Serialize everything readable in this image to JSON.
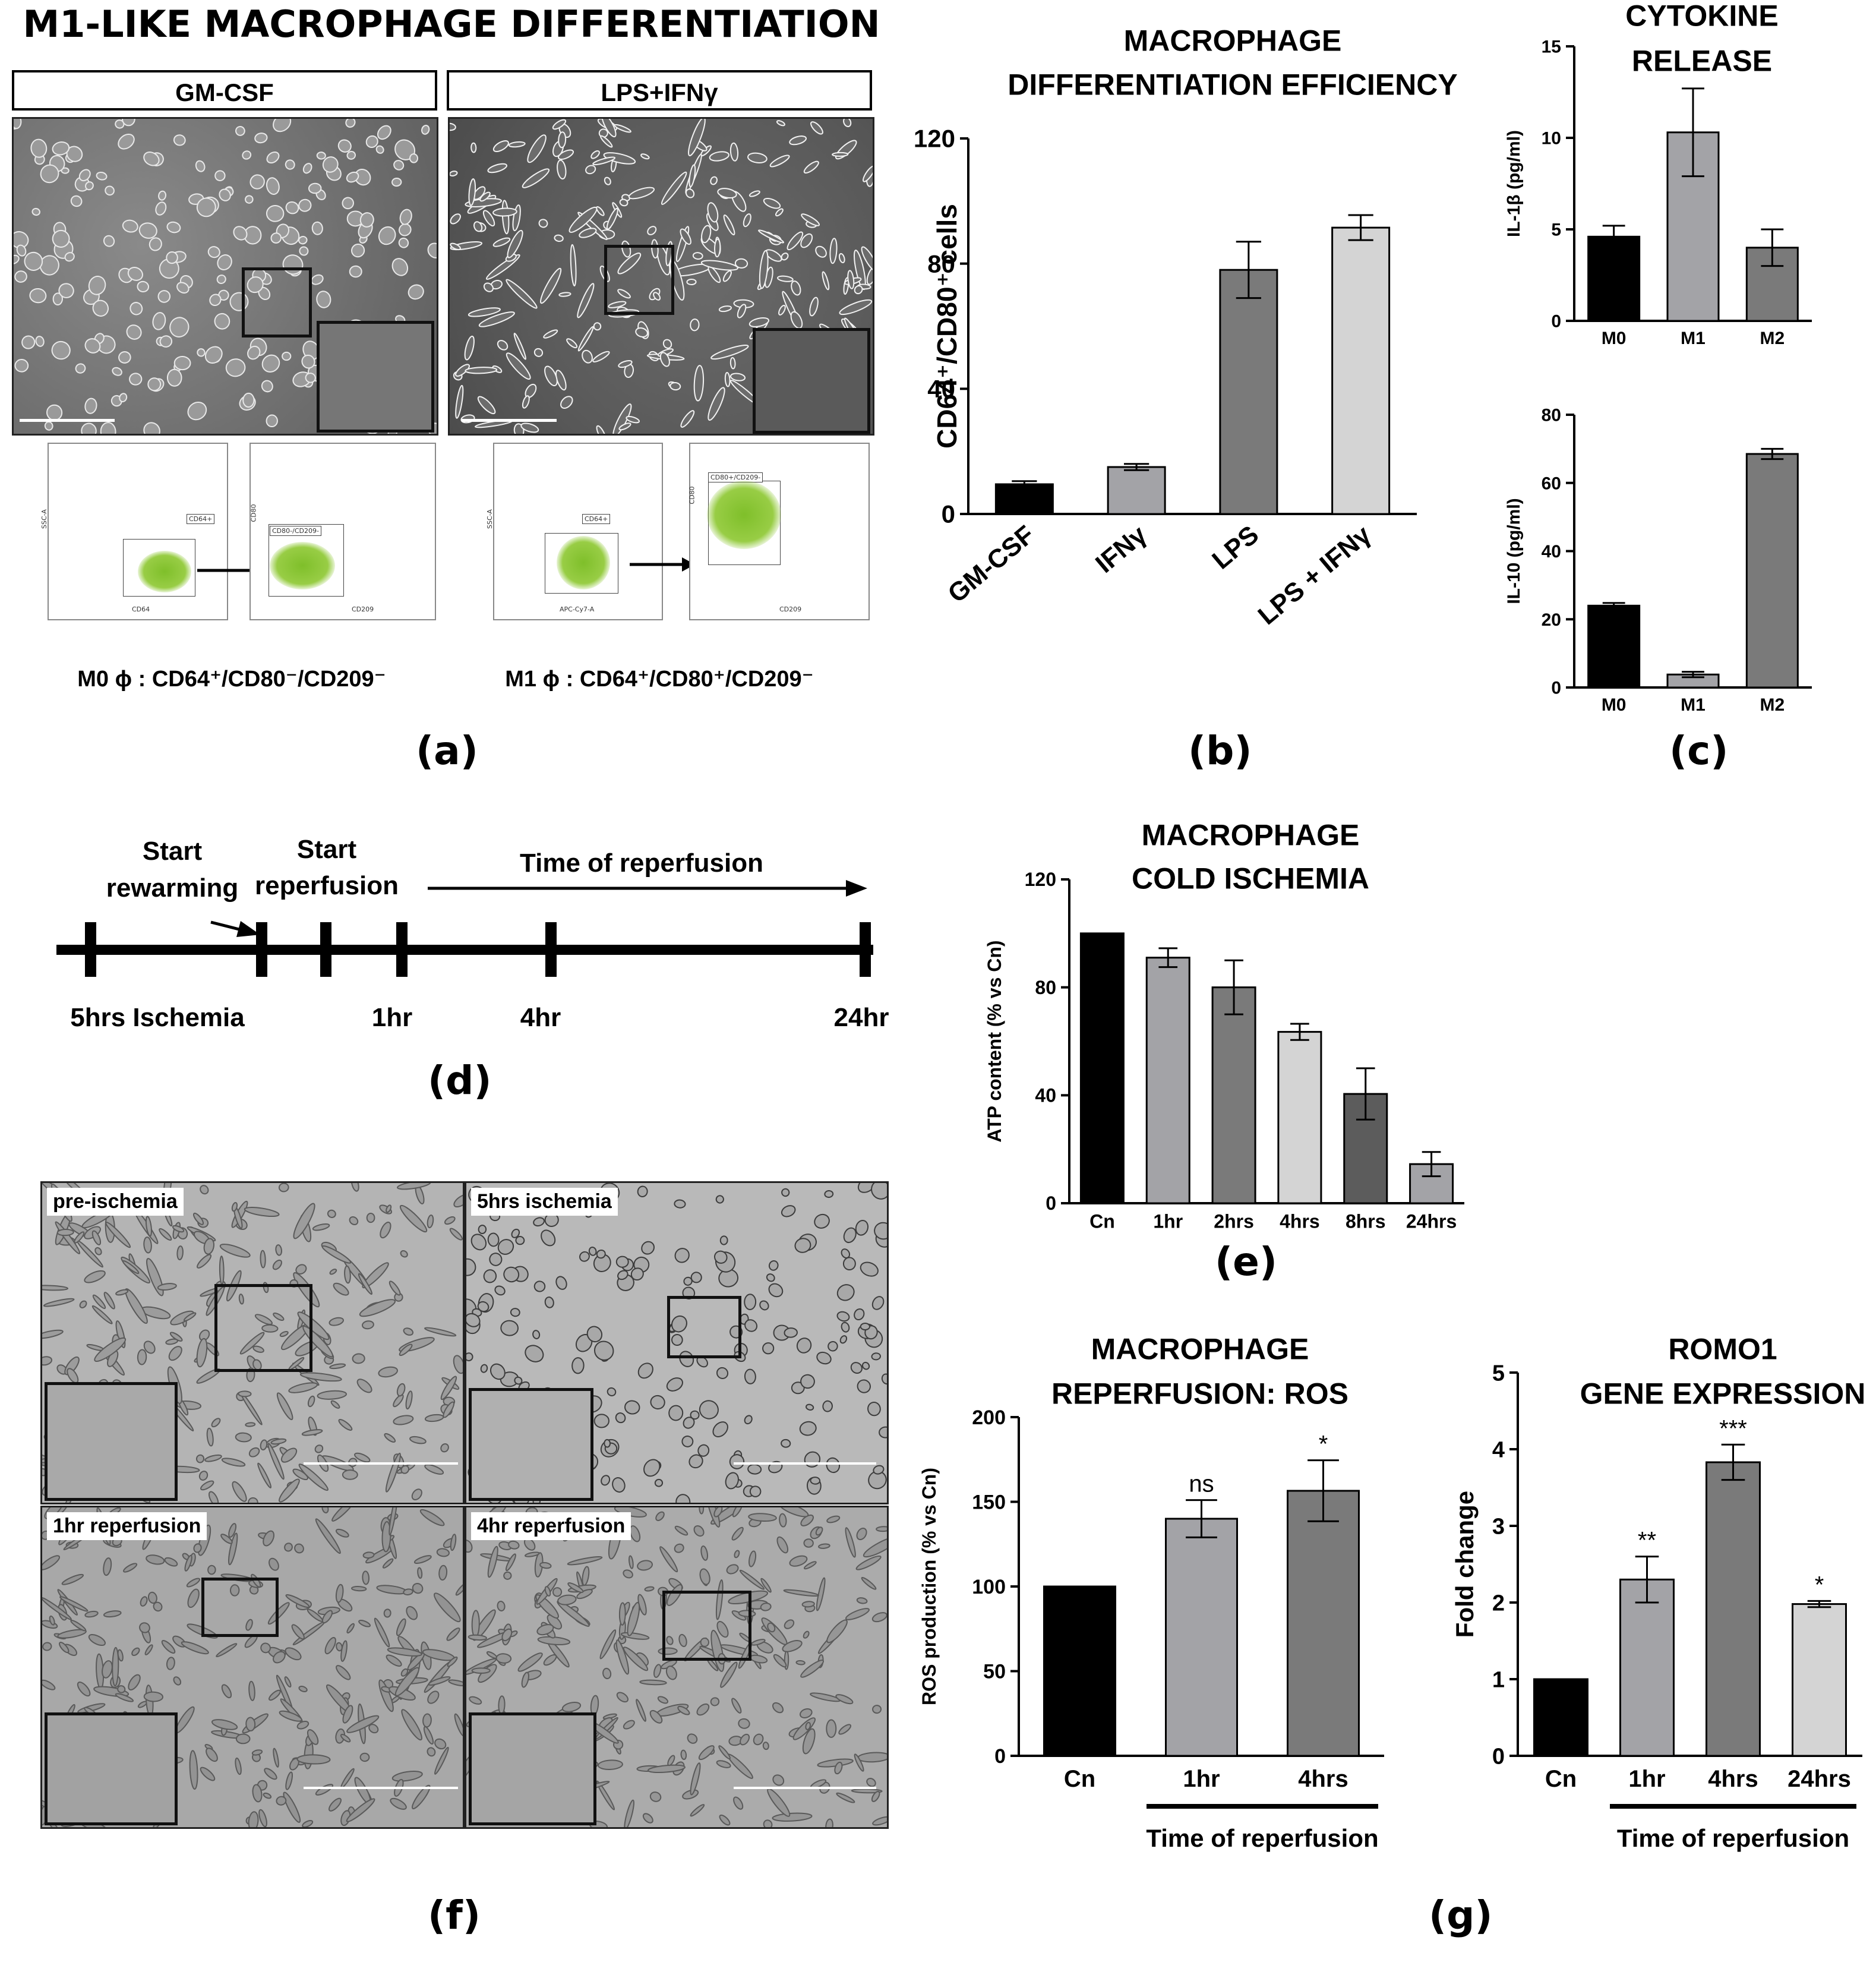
{
  "panel_a": {
    "title": "M1-LIKE MACROPHAGE DIFFERENTIATION",
    "col1": "GM-CSF",
    "col2": "LPS+IFNγ",
    "flow1": {
      "ssc": "SSC-A",
      "gate1": "CD64+",
      "x1": "CD64",
      "y2": "CD80",
      "gate2": "CD80-/CD209-",
      "x2": "CD209"
    },
    "flow2": {
      "ssc": "SSC-A",
      "gate1": "CD64+",
      "x1": "APC-Cy7-A",
      "y2": "CD80",
      "gate2": "CD80+/CD209-",
      "x2": "CD209"
    },
    "pheno1": "M0 ϕ : CD64⁺/CD80⁻/CD209⁻",
    "pheno2": "M1 ϕ : CD64⁺/CD80⁺/CD209⁻",
    "letter": "(a)"
  },
  "panel_d": {
    "start_rewarming": [
      "Start",
      "rewarming"
    ],
    "start_reperfusion": [
      "Start",
      "reperfusion"
    ],
    "time_of_reperfusion": "Time of reperfusion",
    "labels": [
      "5hrs Ischemia",
      "1hr",
      "4hr",
      "24hr"
    ],
    "letter": "(d)"
  },
  "panel_f": {
    "labels": [
      "pre-ischemia",
      "5hrs ischemia",
      "1hr reperfusion",
      "4hr reperfusion"
    ],
    "letter": "(f)"
  },
  "letters": {
    "b": "(b)",
    "c": "(c)",
    "e": "(e)",
    "g": "(g)"
  },
  "colors": {
    "black": "#000000",
    "gray1": "#a3a3a7",
    "gray2": "#7a7a7a",
    "gray3": "#d4d4d4",
    "gray4": "#5c5c5c",
    "green": "#8dc63f"
  },
  "chart_data": [
    {
      "id": "b",
      "type": "bar",
      "title": [
        "MACROPHAGE",
        "DIFFERENTIATION EFFICIENCY"
      ],
      "ylabel": "CD64⁺/CD80⁺ cells",
      "categories": [
        "GM-CSF",
        "IFNγ",
        "LPS",
        "LPS + IFNγ"
      ],
      "values": [
        9.5,
        15,
        78,
        91.5
      ],
      "errors": [
        1,
        1,
        9,
        4
      ],
      "ylim": [
        0,
        120
      ],
      "yticks": [
        0,
        40,
        80,
        120
      ]
    },
    {
      "id": "c1",
      "type": "bar",
      "title": [
        "CYTOKINE",
        "RELEASE"
      ],
      "ylabel": "IL-1β (pg/ml)",
      "categories": [
        "M0",
        "M1",
        "M2"
      ],
      "values": [
        4.6,
        10.3,
        4.0
      ],
      "errors": [
        0.6,
        2.4,
        1.0
      ],
      "ylim": [
        0,
        15
      ],
      "yticks": [
        0,
        5,
        10,
        15
      ]
    },
    {
      "id": "c2",
      "type": "bar",
      "ylabel": "IL-10 (pg/ml)",
      "categories": [
        "M0",
        "M1",
        "M2"
      ],
      "values": [
        24,
        3.8,
        68.5
      ],
      "errors": [
        0.8,
        0.8,
        1.5
      ],
      "ylim": [
        0,
        80
      ],
      "yticks": [
        0,
        20,
        40,
        60,
        80
      ]
    },
    {
      "id": "e",
      "type": "bar",
      "title": [
        "MACROPHAGE",
        "COLD ISCHEMIA"
      ],
      "ylabel": "ATP content (% vs Cn)",
      "categories": [
        "Cn",
        "1hr",
        "2hrs",
        "4hrs",
        "8hrs",
        "24hrs"
      ],
      "values": [
        100,
        91,
        80,
        63.5,
        40.5,
        14.5
      ],
      "errors": [
        0,
        3.5,
        10,
        3,
        9.5,
        4.5
      ],
      "ylim": [
        0,
        120
      ],
      "yticks": [
        0,
        40,
        80,
        120
      ]
    },
    {
      "id": "g1",
      "type": "bar",
      "title": [
        "MACROPHAGE",
        "REPERFUSION: ROS"
      ],
      "ylabel": "ROS production (% vs Cn)",
      "categories": [
        "Cn",
        "1hr",
        "4hrs"
      ],
      "values": [
        100,
        140,
        156.5
      ],
      "errors": [
        0,
        11,
        18
      ],
      "significance": [
        "",
        "ns",
        "*"
      ],
      "ylim": [
        0,
        200
      ],
      "yticks": [
        0,
        50,
        100,
        150,
        200
      ],
      "group_label": "Time of reperfusion"
    },
    {
      "id": "g2",
      "type": "bar",
      "title": [
        "ROMO1",
        "GENE EXPRESSION"
      ],
      "ylabel": "Fold change",
      "categories": [
        "Cn",
        "1hr",
        "4hrs",
        "24hrs"
      ],
      "values": [
        1.0,
        2.3,
        3.83,
        1.98
      ],
      "errors": [
        0,
        0.3,
        0.23,
        0.04
      ],
      "significance": [
        "",
        "**",
        "***",
        "*"
      ],
      "ylim": [
        0,
        5
      ],
      "yticks": [
        0,
        1,
        2,
        3,
        4,
        5
      ],
      "group_label": "Time of reperfusion"
    }
  ]
}
